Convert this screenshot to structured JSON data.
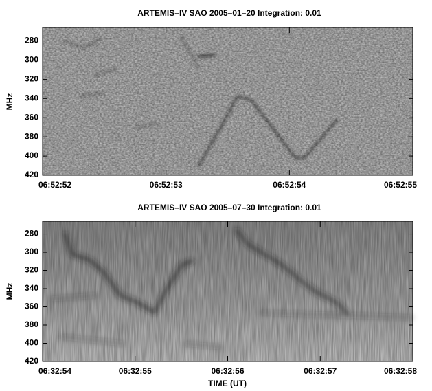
{
  "chart_data": [
    {
      "type": "spectrogram",
      "title": "ARTEMIS–IV  SAO 2005–01–20   Integration: 0.01",
      "ylabel": "MHz",
      "ylim": [
        266,
        420
      ],
      "yticks": [
        280,
        300,
        320,
        340,
        360,
        380,
        400,
        420
      ],
      "xlim": [
        24772,
        24775
      ],
      "xticks": [
        {
          "value": 24772,
          "label": "06:52:52"
        },
        {
          "value": 24773,
          "label": "06:52:53"
        },
        {
          "value": 24774,
          "label": "06:52:54"
        },
        {
          "value": 24775,
          "label": "06:52:55"
        }
      ]
    },
    {
      "type": "spectrogram",
      "title": "ARTEMIS–IV  SAO 2005–07–30   Integration: 0.01",
      "ylabel": "MHz",
      "xlabel": "TIME (UT)",
      "ylim": [
        266,
        420
      ],
      "yticks": [
        280,
        300,
        320,
        340,
        360,
        380,
        400,
        420
      ],
      "xlim": [
        23574,
        23578
      ],
      "xticks": [
        {
          "value": 23574,
          "label": "06:32:54"
        },
        {
          "value": 23575,
          "label": "06:32:55"
        },
        {
          "value": 23576,
          "label": "06:32:56"
        },
        {
          "value": 23577,
          "label": "06:32:57"
        },
        {
          "value": 23578,
          "label": "06:32:58"
        }
      ]
    }
  ]
}
